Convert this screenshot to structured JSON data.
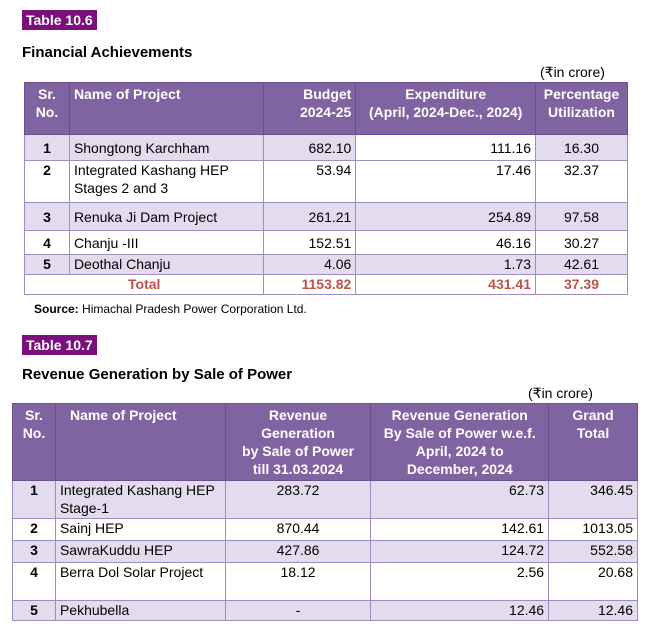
{
  "table1": {
    "tag": "Table 10.6",
    "title": "Financial Achievements",
    "unit": "(₹in crore)",
    "headers": {
      "sr_line1": "Sr.",
      "sr_line2": "No.",
      "name": "Name of Project",
      "budget_line1": "Budget",
      "budget_line2": "2024-25",
      "exp_line1": "Expenditure",
      "exp_line2": "(April, 2024-Dec., 2024)",
      "pct_line1": "Percentage",
      "pct_line2": "Utilization"
    },
    "rows": [
      {
        "sr": "1",
        "name": "Shongtong Karchham",
        "budget": "682.10",
        "expenditure": "111.16",
        "percentage": "16.30"
      },
      {
        "sr": "2",
        "name": "Integrated Kashang HEP Stages 2 and 3",
        "budget": "53.94",
        "expenditure": "17.46",
        "percentage": "32.37"
      },
      {
        "sr": "3",
        "name": "Renuka Ji Dam Project",
        "budget": "261.21",
        "expenditure": "254.89",
        "percentage": "97.58"
      },
      {
        "sr": "4",
        "name": "Chanju -III",
        "budget": "152.51",
        "expenditure": "46.16",
        "percentage": "30.27"
      },
      {
        "sr": "5",
        "name": "Deothal Chanju",
        "budget": "4.06",
        "expenditure": "1.73",
        "percentage": "42.61"
      }
    ],
    "total": {
      "label": "Total",
      "budget": "1153.82",
      "expenditure": "431.41",
      "percentage": "37.39"
    },
    "source_label": "Source:",
    "source_text": "Himachal Pradesh Power Corporation Ltd."
  },
  "table2": {
    "tag": "Table 10.7",
    "title": "Revenue Generation by Sale of Power",
    "unit": "(₹in crore)",
    "headers": {
      "sr_line1": "Sr.",
      "sr_line2": "No.",
      "name": "Name of Project",
      "rev1_line1": "Revenue",
      "rev1_line2": "Generation",
      "rev1_line3": "by Sale of Power",
      "rev1_line4": "till 31.03.2024",
      "rev2_line1": "Revenue Generation",
      "rev2_line2": "By Sale of Power w.e.f.",
      "rev2_line3": "April, 2024 to",
      "rev2_line4": "December, 2024",
      "grand_line1": "Grand",
      "grand_line2": "Total"
    },
    "rows": [
      {
        "sr": "1",
        "name": "Integrated Kashang HEP Stage-1",
        "rev_till": "283.72",
        "rev_wef": "62.73",
        "grand": "346.45"
      },
      {
        "sr": "2",
        "name": "Sainj HEP",
        "rev_till": "870.44",
        "rev_wef": "142.61",
        "grand": "1013.05"
      },
      {
        "sr": "3",
        "name": "SawraKuddu HEP",
        "rev_till": "427.86",
        "rev_wef": "124.72",
        "grand": "552.58"
      },
      {
        "sr": "4",
        "name": "Berra Dol Solar Project",
        "rev_till": "18.12",
        "rev_wef": "2.56",
        "grand": "20.68"
      },
      {
        "sr": "5",
        "name": "Pekhubella",
        "rev_till": "-",
        "rev_wef": "12.46",
        "grand": "12.46"
      }
    ]
  }
}
